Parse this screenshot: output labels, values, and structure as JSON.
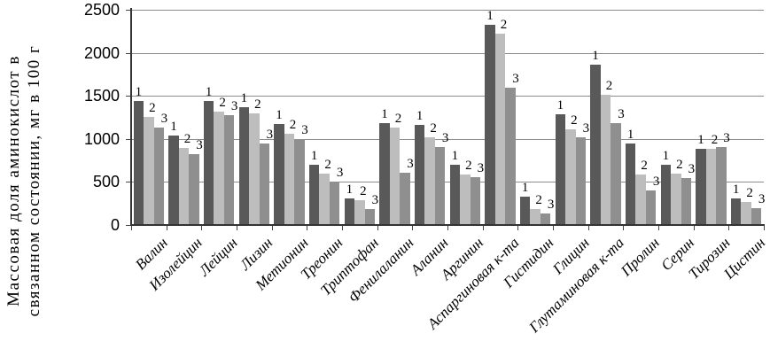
{
  "chart_data": {
    "type": "bar",
    "title": "",
    "ylabel": "Массовая доля аминокислот в связанном состоянии, мг в 100 г",
    "ylabel_lines": [
      "Массовая доля аминокислот в",
      "связанном состоянии, мг в 100 г"
    ],
    "xlabel": "",
    "ylim": [
      0,
      2500
    ],
    "yticks": [
      0,
      500,
      1000,
      1500,
      2000,
      2500
    ],
    "grid": true,
    "legend_position": "none",
    "value_label_style": "series number (1, 2, 3) printed above each bar",
    "categories": [
      "Валин",
      "Изолейцин",
      "Лейцин",
      "Лизин",
      "Метионин",
      "Треонин",
      "Триптофан",
      "Фенилаланин",
      "Аланин",
      "Аргинин",
      "Аспаргиновая к-та",
      "Гистидин",
      "Глицин",
      "Глутаминовая к-та",
      "Пролин",
      "Серин",
      "Тирозин",
      "Цистин"
    ],
    "series": [
      {
        "name": "1",
        "values": [
          1440,
          1040,
          1440,
          1370,
          1170,
          700,
          310,
          1180,
          1165,
          695,
          2330,
          330,
          1290,
          1860,
          950,
          700,
          885,
          310
        ]
      },
      {
        "name": "2",
        "values": [
          1255,
          890,
          1320,
          1300,
          1060,
          595,
          290,
          1130,
          1020,
          590,
          2220,
          185,
          1110,
          1515,
          585,
          600,
          880,
          265
        ]
      },
      {
        "name": "3",
        "values": [
          1130,
          820,
          1280,
          950,
          1000,
          505,
          185,
          610,
          910,
          560,
          1595,
          135,
          1015,
          1185,
          400,
          545,
          910,
          195
        ]
      }
    ],
    "series_colors": [
      "#595959",
      "#bdbdbd",
      "#8f8f8f"
    ],
    "gridline_color": "#8c8c8c",
    "axis_color": "#333333",
    "background_color": "#ffffff"
  }
}
